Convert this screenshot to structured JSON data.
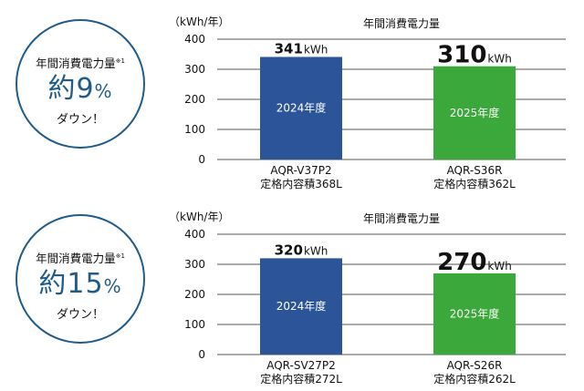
{
  "chart_data": [
    {
      "type": "bar",
      "title": "年間消費電力量",
      "ylabel": "（kWh/年）",
      "ylim": [
        0,
        400
      ],
      "yticks": [
        "0",
        "100",
        "200",
        "300",
        "400"
      ],
      "categories": [
        "AQR-V37P2\n定格内容積368L",
        "AQR-S36R\n定格内容積362L"
      ],
      "values": [
        341,
        310
      ],
      "bar_labels": [
        "2024年度",
        "2025年度"
      ],
      "value_labels": [
        {
          "num": "341",
          "unit": "kWh"
        },
        {
          "num": "310",
          "unit": "kWh"
        }
      ],
      "colors": [
        "#2b5598",
        "#3aa83a"
      ],
      "grid": true,
      "badge": {
        "line1": "年間消費電力量",
        "note": "※1",
        "prefix": "約",
        "num": "9",
        "pct": "%",
        "line3": "ダウン！"
      }
    },
    {
      "type": "bar",
      "title": "年間消費電力量",
      "ylabel": "（kWh/年）",
      "ylim": [
        0,
        400
      ],
      "yticks": [
        "0",
        "100",
        "200",
        "300",
        "400"
      ],
      "categories": [
        "AQR-SV27P2\n定格内容積272L",
        "AQR-S26R\n定格内容積262L"
      ],
      "values": [
        320,
        270
      ],
      "bar_labels": [
        "2024年度",
        "2025年度"
      ],
      "value_labels": [
        {
          "num": "320",
          "unit": "kWh"
        },
        {
          "num": "270",
          "unit": "kWh"
        }
      ],
      "colors": [
        "#2b5598",
        "#3aa83a"
      ],
      "grid": true,
      "badge": {
        "line1": "年間消費電力量",
        "note": "※1",
        "prefix": "約",
        "num": "15",
        "pct": "%",
        "line3": "ダウン！"
      }
    }
  ]
}
